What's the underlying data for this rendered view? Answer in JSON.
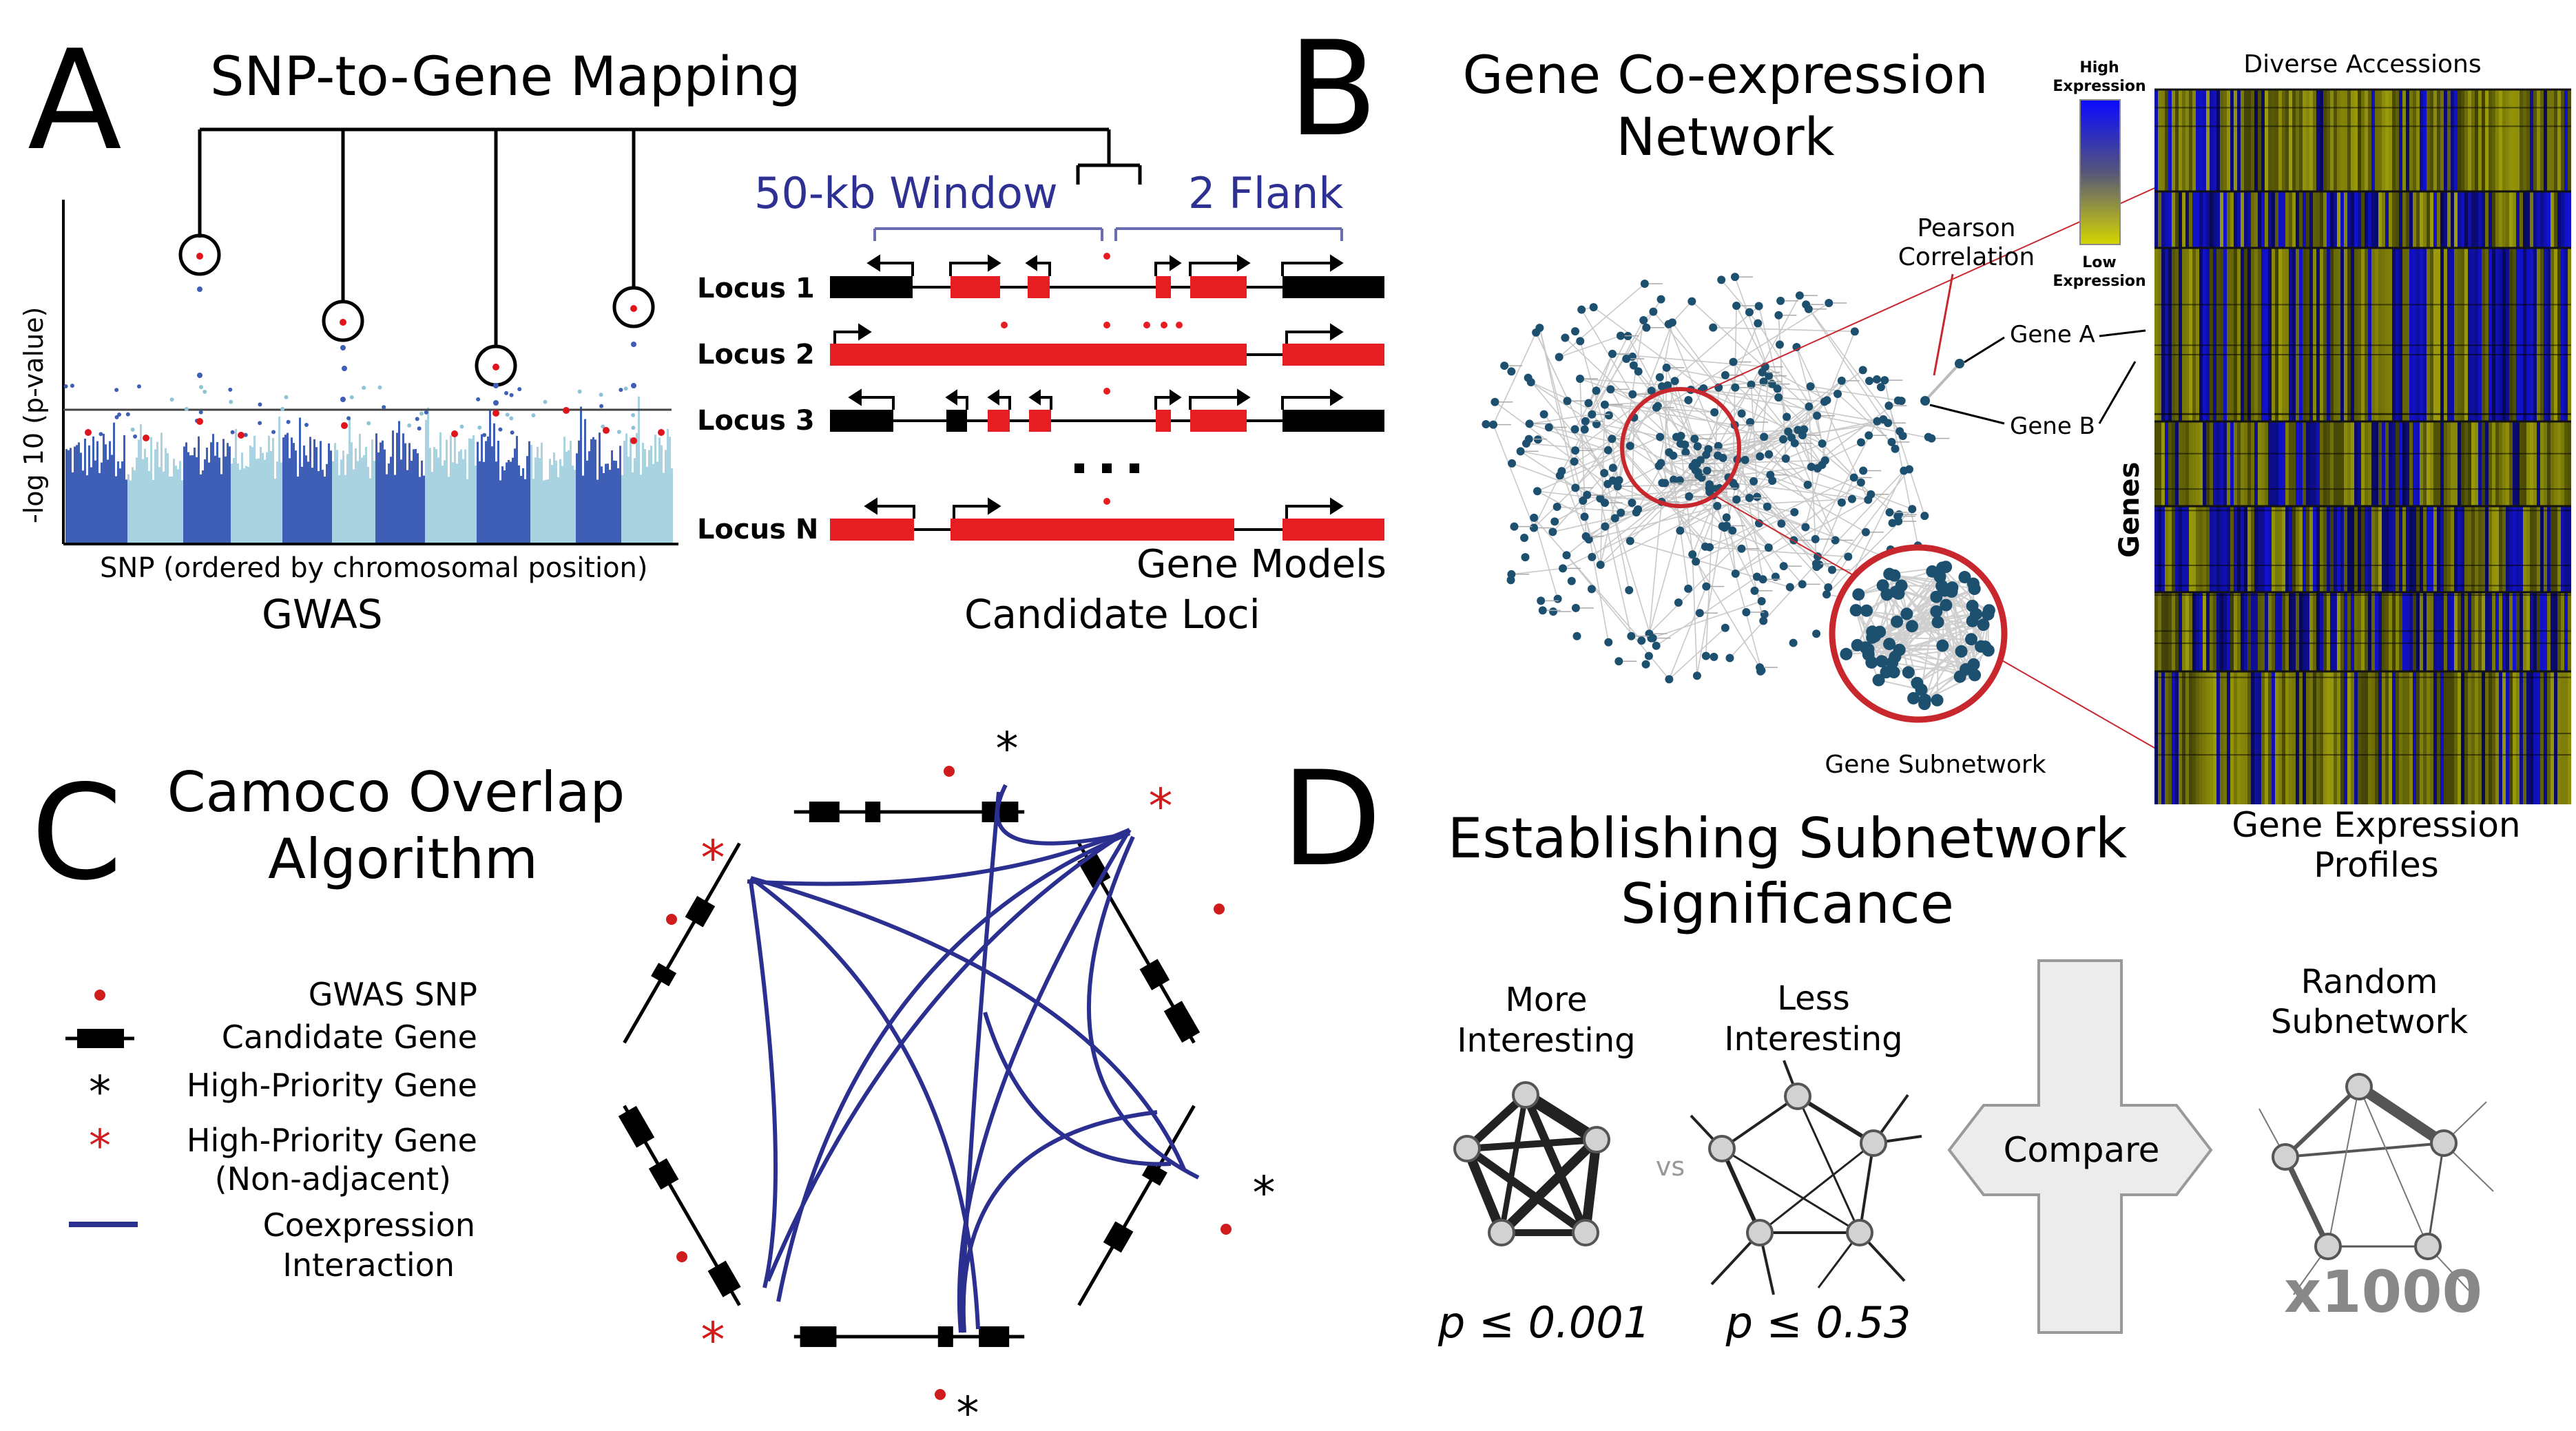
{
  "panelA": {
    "letter": "A",
    "title": "SNP-to-Gene Mapping",
    "ylabel": "-log 10 (p-value)",
    "xlabel": "SNP (ordered by chromosomal position)",
    "gwas_label": "GWAS",
    "window_label": "50-kb Window",
    "flank_label": "2 Flank",
    "loci": [
      "Locus 1",
      "Locus 2",
      "Locus 3",
      "Locus N"
    ],
    "ellipsis": "...",
    "gene_models_label": "Gene Models",
    "candidate_loci_label": "Candidate Loci"
  },
  "panelB": {
    "letter": "B",
    "title_line1": "Gene Co-expression",
    "title_line2": "Network",
    "pearson_line1": "Pearson",
    "pearson_line2": "Correlation",
    "gene_a": "Gene A",
    "gene_b": "Gene B",
    "subnetwork_label": "Gene Subnetwork",
    "heatmap_top": "Diverse Accessions",
    "heatmap_side": "Genes",
    "legend_high_1": "High",
    "legend_high_2": "Expression",
    "legend_low_1": "Low",
    "legend_low_2": "Expression",
    "profiles_line1": "Gene Expression",
    "profiles_line2": "Profiles",
    "colors": {
      "high": "#1010ff",
      "low": "#c8c800",
      "node": "#1d4f6e"
    }
  },
  "panelC": {
    "letter": "C",
    "title_line1": "Camoco Overlap",
    "title_line2": "Algorithm",
    "legend": [
      {
        "label": "GWAS SNP",
        "icon": "red-dot-icon"
      },
      {
        "label": "Candidate Gene",
        "icon": "gene-bar-icon"
      },
      {
        "label": "High-Priority Gene",
        "icon": "black-asterisk-icon"
      },
      {
        "label_line1": "High-Priority Gene",
        "label_line2": "(Non-adjacent)",
        "icon": "red-asterisk-icon"
      },
      {
        "label_line1": "Coexpression",
        "label_line2": "Interaction",
        "icon": "blue-line-icon"
      }
    ],
    "colors": {
      "interaction": "#2b2f8f",
      "snp": "#d01c1c"
    }
  },
  "panelD": {
    "letter": "D",
    "title_line1": "Establishing Subnetwork",
    "title_line2": "Significance",
    "more_line1": "More",
    "more_line2": "Interesting",
    "less_line1": "Less",
    "less_line2": "Interesting",
    "vs": "vs",
    "compare": "Compare",
    "random_line1": "Random",
    "random_line2": "Subnetwork",
    "p_more": "p ≤ 0.001",
    "p_less": "p ≤ 0.53",
    "multiplier": "x1000"
  }
}
